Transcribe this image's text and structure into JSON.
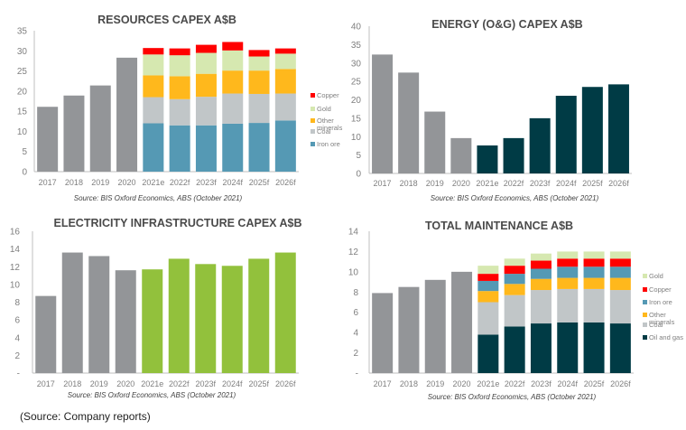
{
  "chart_data": [
    {
      "id": "resources",
      "type": "bar",
      "stacked": true,
      "title": "RESOURCES CAPEX A$B",
      "source": "Source: BIS Oxford Economics, ABS (October 2021)",
      "categories": [
        "2017",
        "2018",
        "2019",
        "2020",
        "2021e",
        "2022f",
        "2023f",
        "2024f",
        "2025f",
        "2026f"
      ],
      "ylim": [
        0,
        35
      ],
      "yticks": [
        "0",
        "5",
        "10",
        "15",
        "20",
        "25",
        "30",
        "35"
      ],
      "ytick_values": [
        0,
        5,
        10,
        15,
        20,
        25,
        30,
        35
      ],
      "historical_color": "#939598",
      "historical_totals": [
        16.1,
        18.9,
        21.4,
        28.3,
        null,
        null,
        null,
        null,
        null,
        null
      ],
      "series": [
        {
          "name": "Iron ore",
          "color": "#5599b4",
          "values": [
            null,
            null,
            null,
            null,
            12.0,
            11.5,
            11.5,
            11.9,
            12.1,
            12.7
          ]
        },
        {
          "name": "Coal",
          "color": "#c1c6c8",
          "values": [
            null,
            null,
            null,
            null,
            6.5,
            6.5,
            7.1,
            7.5,
            7.2,
            6.7
          ]
        },
        {
          "name": "Other minerals",
          "color": "#ffb81c",
          "values": [
            null,
            null,
            null,
            null,
            5.4,
            5.7,
            5.7,
            5.7,
            5.8,
            6.1
          ]
        },
        {
          "name": "Gold",
          "color": "#d6e8b0",
          "values": [
            null,
            null,
            null,
            null,
            5.2,
            5.2,
            5.2,
            5.0,
            3.5,
            3.8
          ]
        },
        {
          "name": "Copper",
          "color": "#ff0000",
          "values": [
            null,
            null,
            null,
            null,
            1.6,
            1.7,
            2.0,
            2.1,
            1.6,
            1.3
          ]
        }
      ],
      "legend_order": [
        "Copper",
        "Gold",
        "Other minerals",
        "Coal",
        "Iron ore"
      ],
      "legend_position": "right"
    },
    {
      "id": "energy",
      "type": "bar",
      "title": "ENERGY (O&G) CAPEX A$B",
      "source": "Source: BIS Oxford Economics, ABS (October 2021)",
      "categories": [
        "2017",
        "2018",
        "2019",
        "2020",
        "2021e",
        "2022f",
        "2023f",
        "2024f",
        "2025f",
        "2026f"
      ],
      "ylim": [
        0,
        40
      ],
      "yticks": [
        "0",
        "5",
        "10",
        "15",
        "20",
        "25",
        "30",
        "35",
        "40"
      ],
      "ytick_values": [
        0,
        5,
        10,
        15,
        20,
        25,
        30,
        35,
        40
      ],
      "values": [
        32.3,
        27.4,
        16.8,
        9.6,
        7.6,
        9.6,
        15.0,
        21.1,
        23.5,
        24.2
      ],
      "colors": [
        "#939598",
        "#939598",
        "#939598",
        "#939598",
        "#003b45",
        "#003b45",
        "#003b45",
        "#003b45",
        "#003b45",
        "#003b45"
      ]
    },
    {
      "id": "electricity",
      "type": "bar",
      "title": "ELECTRICITY INFRASTRUCTURE CAPEX A$B",
      "source": "Source: BIS Oxford Economics, ABS (October 2021)",
      "categories": [
        "2017",
        "2018",
        "2019",
        "2020",
        "2021e",
        "2022f",
        "2023f",
        "2024f",
        "2025f",
        "2026f"
      ],
      "ylim": [
        0,
        16
      ],
      "yticks": [
        "-",
        "2",
        "4",
        "6",
        "8",
        "10",
        "12",
        "14",
        "16"
      ],
      "ytick_values": [
        0,
        2,
        4,
        6,
        8,
        10,
        12,
        14,
        16
      ],
      "values": [
        8.7,
        13.6,
        13.2,
        11.6,
        11.7,
        12.9,
        12.3,
        12.1,
        12.9,
        13.6
      ],
      "colors": [
        "#939598",
        "#939598",
        "#939598",
        "#939598",
        "#92c13c",
        "#92c13c",
        "#92c13c",
        "#92c13c",
        "#92c13c",
        "#92c13c"
      ]
    },
    {
      "id": "maintenance",
      "type": "bar",
      "stacked": true,
      "title": "TOTAL MAINTENANCE A$B",
      "source": "Source: BIS Oxford Economics, ABS (October 2021)",
      "categories": [
        "2017",
        "2018",
        "2019",
        "2020",
        "2021e",
        "2022f",
        "2023f",
        "2024f",
        "2025f",
        "2026f"
      ],
      "ylim": [
        0,
        14
      ],
      "yticks": [
        "-",
        "2",
        "4",
        "6",
        "8",
        "10",
        "12",
        "14"
      ],
      "ytick_values": [
        0,
        2,
        4,
        6,
        8,
        10,
        12,
        14
      ],
      "historical_color": "#939598",
      "historical_totals": [
        7.9,
        8.5,
        9.2,
        10.0,
        null,
        null,
        null,
        null,
        null,
        null
      ],
      "series": [
        {
          "name": "Oil and gas",
          "color": "#003b45",
          "values": [
            null,
            null,
            null,
            null,
            3.8,
            4.6,
            4.9,
            5.0,
            5.0,
            4.9
          ]
        },
        {
          "name": "Coal",
          "color": "#c1c6c8",
          "values": [
            null,
            null,
            null,
            null,
            3.2,
            3.1,
            3.3,
            3.3,
            3.3,
            3.3
          ]
        },
        {
          "name": "Other minerals",
          "color": "#ffb81c",
          "values": [
            null,
            null,
            null,
            null,
            1.1,
            1.1,
            1.1,
            1.1,
            1.1,
            1.2
          ]
        },
        {
          "name": "Iron ore",
          "color": "#5599b4",
          "values": [
            null,
            null,
            null,
            null,
            1.0,
            1.0,
            1.0,
            1.1,
            1.1,
            1.1
          ]
        },
        {
          "name": "Copper",
          "color": "#ff0000",
          "values": [
            null,
            null,
            null,
            null,
            0.7,
            0.8,
            0.8,
            0.8,
            0.8,
            0.8
          ]
        },
        {
          "name": "Gold",
          "color": "#d6e8b0",
          "values": [
            null,
            null,
            null,
            null,
            0.8,
            0.7,
            0.7,
            0.7,
            0.7,
            0.7
          ]
        }
      ],
      "legend_order": [
        "Gold",
        "Copper",
        "Iron ore",
        "Other minerals",
        "Coal",
        "Oil and gas"
      ],
      "legend_position": "right"
    }
  ],
  "footnote": "(Source: Company reports)"
}
